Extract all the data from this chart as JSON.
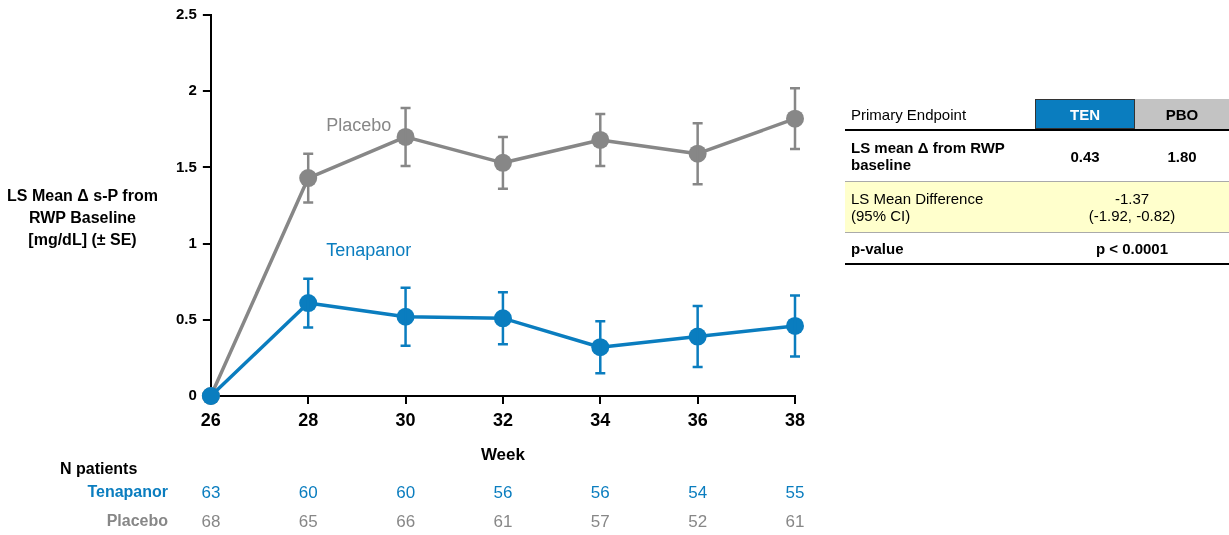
{
  "chart_data": [
    {
      "type": "line",
      "ylabel": "LS Mean Δ s-P from RWP Baseline [mg/dL] (± SE)",
      "xlabel": "Week",
      "x": [
        26,
        28,
        30,
        32,
        34,
        36,
        38
      ],
      "xlim": [
        26,
        38
      ],
      "xticks": [
        26,
        28,
        30,
        32,
        34,
        36,
        38
      ],
      "ylim": [
        0,
        2.5
      ],
      "yticks": [
        0,
        0.5,
        1,
        1.5,
        2,
        2.5
      ],
      "grid": false,
      "legend": false,
      "marker": "circle",
      "series": [
        {
          "name": "Tenapanor",
          "color": "#0a7dbf",
          "values": [
            0,
            0.61,
            0.52,
            0.51,
            0.32,
            0.39,
            0.46
          ],
          "errors": [
            null,
            0.16,
            0.19,
            0.17,
            0.17,
            0.2,
            0.2
          ]
        },
        {
          "name": "Placebo",
          "color": "#878787",
          "values": [
            0,
            1.43,
            1.7,
            1.53,
            1.68,
            1.59,
            1.82
          ],
          "errors": [
            null,
            0.16,
            0.19,
            0.17,
            0.17,
            0.2,
            0.2
          ]
        }
      ],
      "annotations": [
        "N patients",
        "Tenapanor",
        "63",
        "60",
        "60",
        "56",
        "56",
        "54",
        "55",
        "Placebo",
        "68",
        "65",
        "66",
        "61",
        "57",
        "52",
        "61"
      ]
    },
    {
      "type": "other",
      "annotations": [
        "Primary Endpoint",
        "TEN",
        "PBO",
        "LS mean Δ from RWP baseline",
        "0.43",
        "1.80",
        "LS Mean Difference\n(95% CI)",
        "-1.37\n(-1.92, -0.82)",
        "p-value",
        "p < 0.0001"
      ]
    }
  ]
}
